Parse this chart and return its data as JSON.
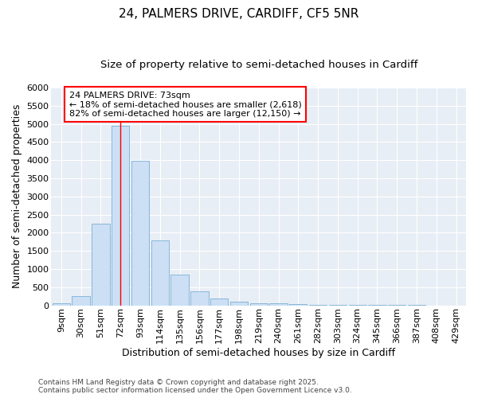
{
  "title": "24, PALMERS DRIVE, CARDIFF, CF5 5NR",
  "subtitle": "Size of property relative to semi-detached houses in Cardiff",
  "xlabel": "Distribution of semi-detached houses by size in Cardiff",
  "ylabel": "Number of semi-detached properties",
  "categories": [
    "9sqm",
    "30sqm",
    "51sqm",
    "72sqm",
    "93sqm",
    "114sqm",
    "135sqm",
    "156sqm",
    "177sqm",
    "198sqm",
    "219sqm",
    "240sqm",
    "261sqm",
    "282sqm",
    "303sqm",
    "324sqm",
    "345sqm",
    "366sqm",
    "387sqm",
    "408sqm",
    "429sqm"
  ],
  "values": [
    50,
    260,
    2250,
    4950,
    3980,
    1780,
    850,
    390,
    195,
    105,
    65,
    50,
    25,
    10,
    5,
    3,
    2,
    1,
    1,
    0,
    0
  ],
  "bar_color": "#ccdff5",
  "bar_edge_color": "#7bafd4",
  "property_bin_index": 3,
  "annotation_text_line1": "24 PALMERS DRIVE: 73sqm",
  "annotation_text_line2": "← 18% of semi-detached houses are smaller (2,618)",
  "annotation_text_line3": "82% of semi-detached houses are larger (12,150) →",
  "footer_line1": "Contains HM Land Registry data © Crown copyright and database right 2025.",
  "footer_line2": "Contains public sector information licensed under the Open Government Licence v3.0.",
  "ylim": [
    0,
    6000
  ],
  "yticks": [
    0,
    500,
    1000,
    1500,
    2000,
    2500,
    3000,
    3500,
    4000,
    4500,
    5000,
    5500,
    6000
  ],
  "fig_bg_color": "#ffffff",
  "plot_bg_color": "#e8eef5",
  "grid_color": "#ffffff",
  "title_fontsize": 11,
  "subtitle_fontsize": 9.5,
  "axis_label_fontsize": 9,
  "tick_fontsize": 8
}
